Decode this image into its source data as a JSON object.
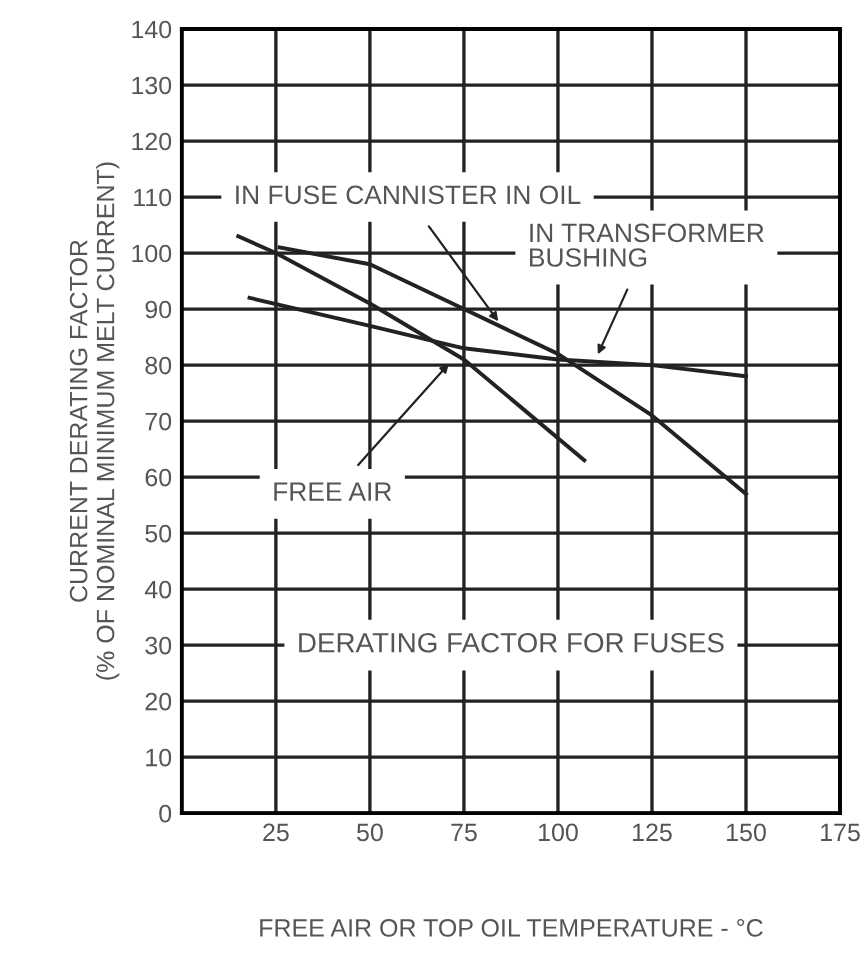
{
  "chart_data": {
    "type": "line",
    "title": "DERATING FACTOR FOR FUSES",
    "xlabel": "FREE AIR OR TOP OIL TEMPERATURE - °C",
    "ylabel": "CURRENT DERATING FACTOR\n(% OF NOMINAL MINIMUM MELT CURRENT)",
    "series": [
      {
        "color": "#222222",
        "x": [
          15,
          25,
          50,
          75,
          107
        ],
        "values": [
          103,
          100,
          91,
          81,
          63
        ]
      },
      {
        "color": "#222222",
        "x": [
          26,
          50,
          75,
          100,
          125,
          150
        ],
        "values": [
          101,
          98,
          90,
          82,
          71,
          57
        ]
      },
      {
        "color": "#222222",
        "x": [
          18,
          50,
          75,
          100,
          125,
          150
        ],
        "values": [
          92,
          87,
          83,
          81,
          80,
          78
        ]
      }
    ],
    "annotations": [
      {
        "text": "IN FUSE CANNISTER IN OIL",
        "x": 85,
        "y": 87
      },
      {
        "text": "IN TRANSFORMER\nBUSHING",
        "x": 110,
        "y": 81
      },
      {
        "text": "FREE AIR",
        "x": 72,
        "y": 81
      }
    ],
    "xlim": [
      0,
      175
    ],
    "xticks": [
      25,
      50,
      75,
      100,
      125,
      150,
      175
    ],
    "ylim": [
      0,
      140
    ],
    "yticks": [
      0,
      10,
      20,
      30,
      40,
      50,
      60,
      70,
      80,
      90,
      100,
      110,
      120,
      130,
      140
    ],
    "grid": true,
    "marker": "none",
    "line_style": "solid",
    "legend": false
  }
}
